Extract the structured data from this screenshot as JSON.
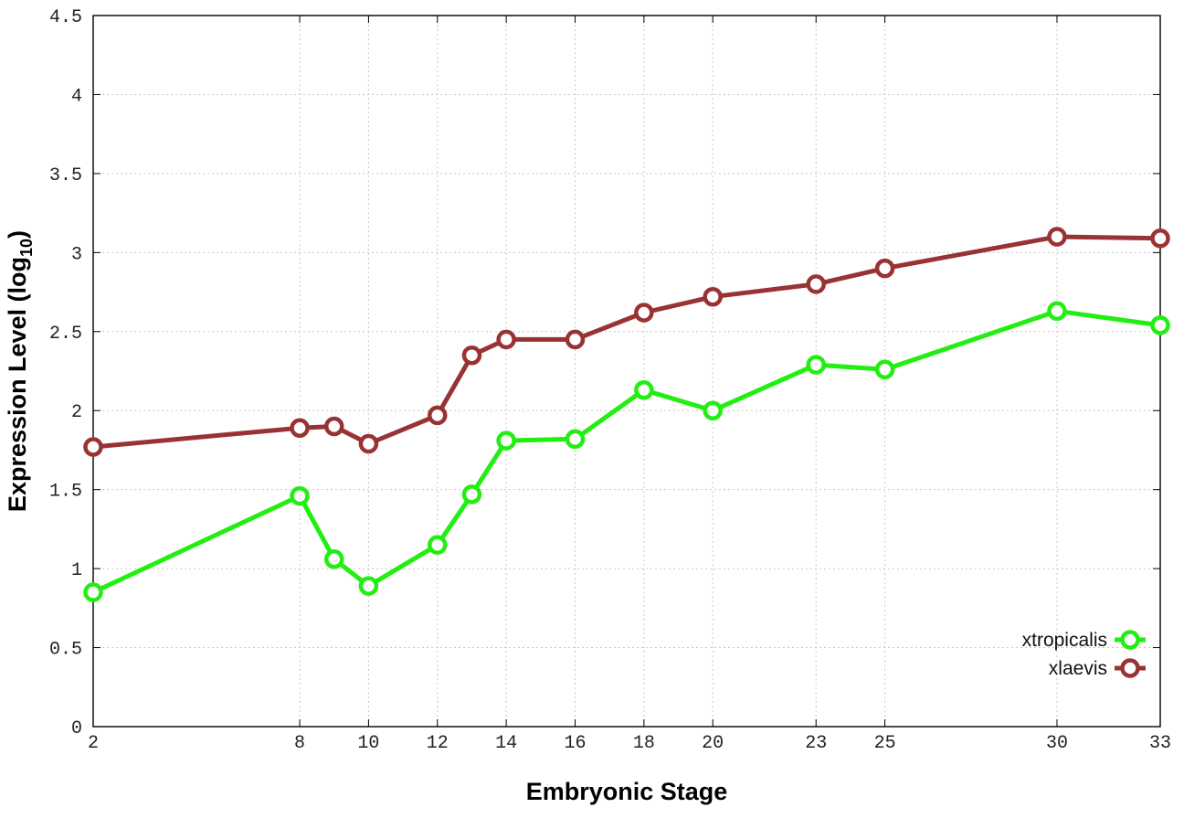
{
  "chart_data": {
    "type": "line",
    "xlabel": "Embryonic Stage",
    "ylabel_main": "Expression Level (log",
    "ylabel_sub": "10",
    "ylabel_close": ")",
    "x_ticks": [
      2,
      8,
      10,
      12,
      14,
      16,
      18,
      20,
      23,
      25,
      30,
      33
    ],
    "y_ticks": [
      0,
      0.5,
      1,
      1.5,
      2,
      2.5,
      3,
      3.5,
      4,
      4.5
    ],
    "y_tick_labels": [
      "0",
      "0.5",
      "1",
      "1.5",
      "2",
      "2.5",
      "3",
      "3.5",
      "4",
      "4.5"
    ],
    "xlim": [
      2,
      33
    ],
    "ylim": [
      0,
      4.5
    ],
    "grid": true,
    "legend_position": "bottom-right",
    "x": [
      2,
      8,
      9,
      10,
      12,
      13,
      14,
      16,
      18,
      20,
      23,
      25,
      30,
      33
    ],
    "series": [
      {
        "name": "xtropicalis",
        "color": "#22ee11",
        "values": [
          0.85,
          1.46,
          1.06,
          0.89,
          1.15,
          1.47,
          1.81,
          1.82,
          2.13,
          2.0,
          2.29,
          2.26,
          2.63,
          2.54
        ]
      },
      {
        "name": "xlaevis",
        "color": "#993333",
        "values": [
          1.77,
          1.89,
          1.9,
          1.79,
          1.97,
          2.35,
          2.45,
          2.45,
          2.62,
          2.72,
          2.8,
          2.9,
          3.1,
          3.09
        ]
      }
    ]
  }
}
